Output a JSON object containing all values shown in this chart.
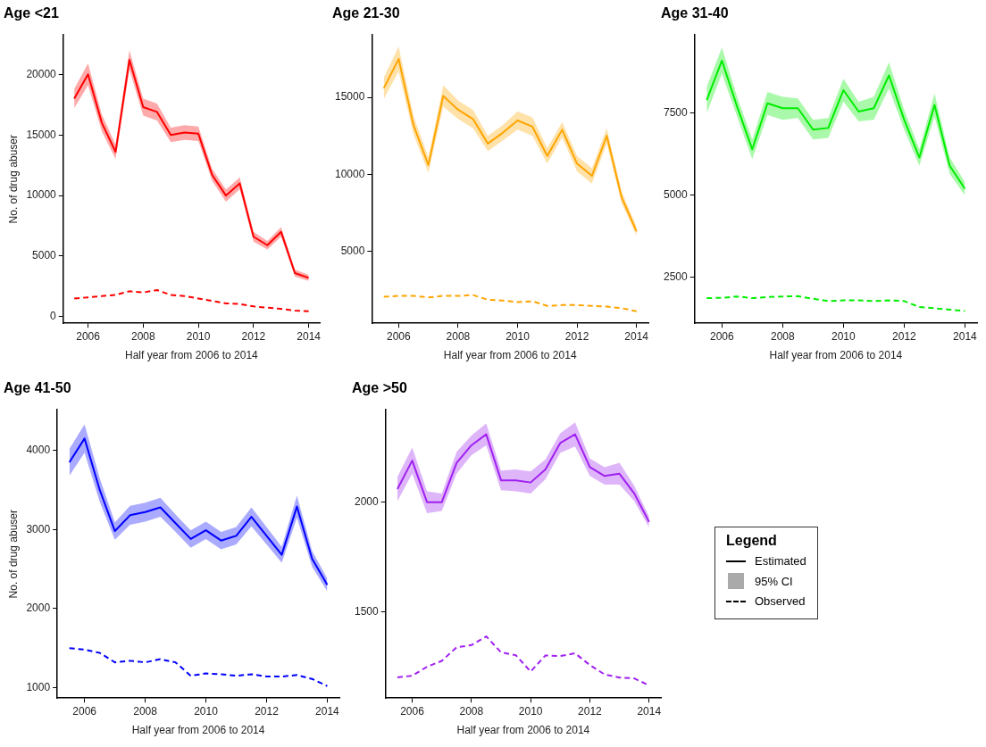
{
  "chart_data": [
    {
      "type": "line",
      "title": "Age <21",
      "xlabel": "Half year from 2006 to 2014",
      "ylabel": "No. of drug abuser",
      "x": [
        2005.5,
        2006,
        2006.5,
        2007,
        2007.5,
        2008,
        2008.5,
        2009,
        2009.5,
        2010,
        2010.5,
        2011,
        2011.5,
        2012,
        2012.5,
        2013,
        2013.5,
        2014
      ],
      "xlim": [
        2005.1,
        2014.4
      ],
      "xticks": [
        2006,
        2008,
        2010,
        2012,
        2014
      ],
      "ylim": [
        -540,
        23250
      ],
      "yticks": [
        0,
        5000,
        10000,
        15000,
        20000
      ],
      "series": [
        {
          "color": "#ff0000",
          "values": [
            18000,
            20000,
            16000,
            13600,
            21200,
            17300,
            16900,
            15000,
            15200,
            15100,
            11700,
            10000,
            11000,
            6600,
            5900,
            7000,
            3600,
            3200
          ],
          "lower": [
            17200,
            19100,
            15300,
            13000,
            20400,
            16600,
            16200,
            14400,
            14600,
            14500,
            11200,
            9500,
            10500,
            6200,
            5550,
            6600,
            3300,
            2950
          ],
          "upper": [
            18800,
            20900,
            16700,
            14200,
            22000,
            18000,
            17600,
            15600,
            15800,
            15700,
            12200,
            10500,
            11500,
            7000,
            6250,
            7400,
            3900,
            3450
          ]
        },
        {
          "color": "#ff0000",
          "line_style": "dashed",
          "values": [
            1500,
            1600,
            1700,
            1800,
            2100,
            2000,
            2200,
            1800,
            1700,
            1500,
            1300,
            1100,
            1050,
            850,
            750,
            650,
            500,
            450
          ]
        }
      ]
    },
    {
      "type": "line",
      "title": "Age 21-30",
      "xlabel": "Half year from 2006 to 2014",
      "x": [
        2005.5,
        2006,
        2006.5,
        2007,
        2007.5,
        2008,
        2008.5,
        2009,
        2009.5,
        2010,
        2010.5,
        2011,
        2011.5,
        2012,
        2012.5,
        2013,
        2013.5,
        2014
      ],
      "xlim": [
        2005.1,
        2014.4
      ],
      "xticks": [
        2006,
        2008,
        2010,
        2012,
        2014
      ],
      "ylim": [
        320,
        19060
      ],
      "yticks": [
        5000,
        10000,
        15000
      ],
      "series": [
        {
          "color": "#ffa500",
          "values": [
            15600,
            17500,
            13200,
            10600,
            15100,
            14200,
            13600,
            12000,
            12700,
            13500,
            13100,
            11200,
            12900,
            10700,
            9900,
            12500,
            8500,
            6300
          ],
          "lower": [
            14900,
            16700,
            12600,
            10100,
            14400,
            13600,
            13000,
            11500,
            12200,
            12900,
            12500,
            10700,
            12400,
            10200,
            9400,
            12000,
            8100,
            6000
          ],
          "upper": [
            16300,
            18300,
            13800,
            11100,
            15800,
            14800,
            14200,
            12500,
            13200,
            14100,
            13700,
            11700,
            13400,
            11200,
            10400,
            13000,
            8900,
            6600
          ]
        },
        {
          "color": "#ffa500",
          "line_style": "dashed",
          "values": [
            2040,
            2100,
            2100,
            2000,
            2100,
            2100,
            2150,
            1850,
            1800,
            1700,
            1750,
            1450,
            1500,
            1500,
            1450,
            1400,
            1300,
            1100
          ]
        }
      ]
    },
    {
      "type": "line",
      "title": "Age 31-40",
      "xlabel": "Half year from 2006 to 2014",
      "x": [
        2005.5,
        2006,
        2006.5,
        2007,
        2007.5,
        2008,
        2008.5,
        2009,
        2009.5,
        2010,
        2010.5,
        2011,
        2011.5,
        2012,
        2012.5,
        2013,
        2013.5,
        2014
      ],
      "xlim": [
        2005.1,
        2014.4
      ],
      "xticks": [
        2006,
        2008,
        2010,
        2012,
        2014
      ],
      "ylim": [
        1105,
        9880
      ],
      "yticks": [
        2500,
        5000,
        7500
      ],
      "series": [
        {
          "color": "#00ee00",
          "values": [
            7900,
            9100,
            7700,
            6400,
            7800,
            7650,
            7650,
            7000,
            7050,
            8200,
            7550,
            7650,
            8650,
            7300,
            6150,
            7750,
            5900,
            5200
          ],
          "lower": [
            7500,
            8700,
            7400,
            6100,
            7450,
            7300,
            7350,
            6700,
            6750,
            7850,
            7250,
            7300,
            8250,
            7000,
            5900,
            7400,
            5650,
            5000
          ],
          "upper": [
            8300,
            9500,
            8000,
            6700,
            8150,
            8000,
            7950,
            7300,
            7350,
            8550,
            7850,
            8000,
            9050,
            7600,
            6400,
            8100,
            6150,
            5400
          ]
        },
        {
          "color": "#00ee00",
          "line_style": "dashed",
          "values": [
            1870,
            1880,
            1920,
            1870,
            1900,
            1920,
            1930,
            1850,
            1780,
            1800,
            1800,
            1780,
            1800,
            1780,
            1600,
            1560,
            1520,
            1480
          ]
        }
      ]
    },
    {
      "type": "line",
      "title": "Age 41-50",
      "xlabel": "Half year from 2006 to 2014",
      "ylabel": "No. of drug abuser",
      "x": [
        2005.5,
        2006,
        2006.5,
        2007,
        2007.5,
        2008,
        2008.5,
        2009,
        2009.5,
        2010,
        2010.5,
        2011,
        2011.5,
        2012,
        2012.5,
        2013,
        2013.5,
        2014
      ],
      "xlim": [
        2005.1,
        2014.4
      ],
      "xticks": [
        2006,
        2008,
        2010,
        2012,
        2014
      ],
      "ylim": [
        868,
        4513
      ],
      "yticks": [
        1000,
        2000,
        3000,
        4000
      ],
      "series": [
        {
          "color": "#0000ff",
          "values": [
            3850,
            4150,
            3500,
            2980,
            3180,
            3220,
            3280,
            3080,
            2880,
            2990,
            2860,
            2920,
            3160,
            2920,
            2680,
            3290,
            2630,
            2300
          ],
          "lower": [
            3680,
            3970,
            3350,
            2870,
            3060,
            3100,
            3160,
            2970,
            2770,
            2880,
            2750,
            2810,
            3040,
            2810,
            2580,
            3150,
            2530,
            2220
          ],
          "upper": [
            4020,
            4330,
            3650,
            3090,
            3300,
            3340,
            3400,
            3190,
            2990,
            3100,
            2970,
            3030,
            3280,
            3030,
            2780,
            3430,
            2730,
            2380
          ]
        },
        {
          "color": "#0000ff",
          "line_style": "dashed",
          "values": [
            1500,
            1480,
            1440,
            1320,
            1340,
            1320,
            1360,
            1320,
            1150,
            1180,
            1170,
            1150,
            1170,
            1140,
            1140,
            1160,
            1110,
            1020
          ]
        }
      ]
    },
    {
      "type": "line",
      "title": "Age >50",
      "xlabel": "Half year from 2006 to 2014",
      "x": [
        2005.5,
        2006,
        2006.5,
        2007,
        2007.5,
        2008,
        2008.5,
        2009,
        2009.5,
        2010,
        2010.5,
        2011,
        2011.5,
        2012,
        2012.5,
        2013,
        2013.5,
        2014
      ],
      "xlim": [
        2005.1,
        2014.4
      ],
      "xticks": [
        2006,
        2008,
        2010,
        2012,
        2014
      ],
      "ylim": [
        1105,
        2422
      ],
      "yticks": [
        1500,
        2000
      ],
      "legend": "right",
      "legend_title": "Legend",
      "annotations": [
        "95% CI"
      ],
      "series": [
        {
          "name": "Estimated",
          "color": "#a020f0",
          "values": [
            2060,
            2190,
            2000,
            2000,
            2180,
            2260,
            2310,
            2100,
            2100,
            2090,
            2150,
            2270,
            2310,
            2160,
            2120,
            2130,
            2040,
            1910
          ],
          "lower": [
            2005,
            2130,
            1950,
            1960,
            2130,
            2215,
            2260,
            2055,
            2050,
            2040,
            2105,
            2225,
            2255,
            2120,
            2080,
            2080,
            2005,
            1885
          ],
          "upper": [
            2115,
            2250,
            2050,
            2040,
            2230,
            2305,
            2360,
            2145,
            2150,
            2140,
            2195,
            2315,
            2365,
            2200,
            2160,
            2180,
            2075,
            1935
          ]
        },
        {
          "name": "Observed",
          "color": "#a020f0",
          "line_style": "dashed",
          "values": [
            1200,
            1207,
            1248,
            1275,
            1337,
            1347,
            1387,
            1314,
            1301,
            1226,
            1300,
            1297,
            1310,
            1256,
            1213,
            1199,
            1195,
            1163
          ]
        }
      ]
    }
  ]
}
